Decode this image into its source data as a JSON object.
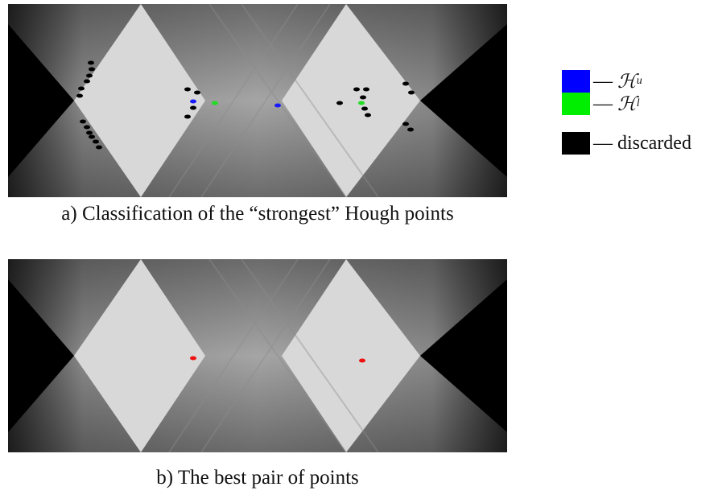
{
  "panels": [
    {
      "caption": "a) Classification of the “strongest” Hough points"
    },
    {
      "caption": "b) The best pair of points"
    }
  ],
  "legend": {
    "items": [
      {
        "color": "#0000ff",
        "dash": "—",
        "symbol": "ℋ",
        "sup": "u"
      },
      {
        "color": "#00ee00",
        "dash": "—",
        "symbol": "ℋ",
        "sup": "l"
      },
      {
        "color": "#000000",
        "dash": "—",
        "label": "discarded"
      }
    ]
  }
}
